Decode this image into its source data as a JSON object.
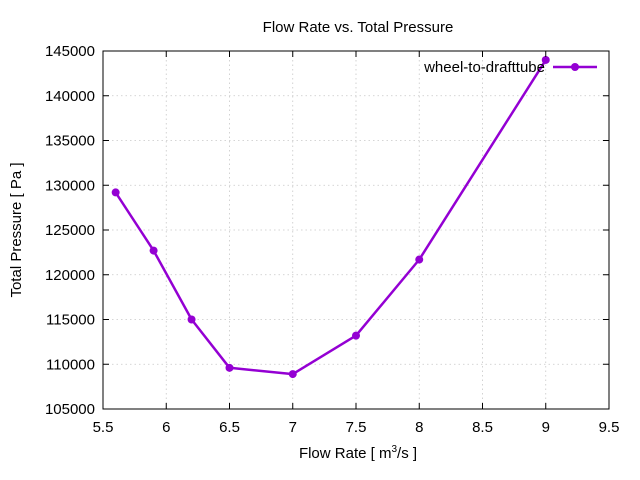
{
  "chart_data": {
    "type": "line",
    "title": "Flow Rate vs. Total Pressure",
    "xlabel_main": "Flow Rate [ m",
    "xlabel_sup": "3",
    "xlabel_tail": "/s ]",
    "ylabel": "Total Pressure [ Pa ]",
    "xlim": [
      5.5,
      9.5
    ],
    "ylim": [
      105000,
      145000
    ],
    "x_ticks": [
      "5.5",
      "6",
      "6.5",
      "7",
      "7.5",
      "8",
      "8.5",
      "9",
      "9.5"
    ],
    "y_ticks": [
      "105000",
      "110000",
      "115000",
      "120000",
      "125000",
      "130000",
      "135000",
      "140000",
      "145000"
    ],
    "grid": true,
    "legend_position": "top-right",
    "series": [
      {
        "name": "wheel-to-drafttube",
        "color": "#9400d3",
        "x": [
          5.6,
          5.9,
          6.2,
          6.5,
          7.0,
          7.5,
          8.0,
          9.0
        ],
        "y": [
          129200,
          122700,
          115000,
          109600,
          108900,
          113200,
          121700,
          144000
        ]
      }
    ]
  }
}
